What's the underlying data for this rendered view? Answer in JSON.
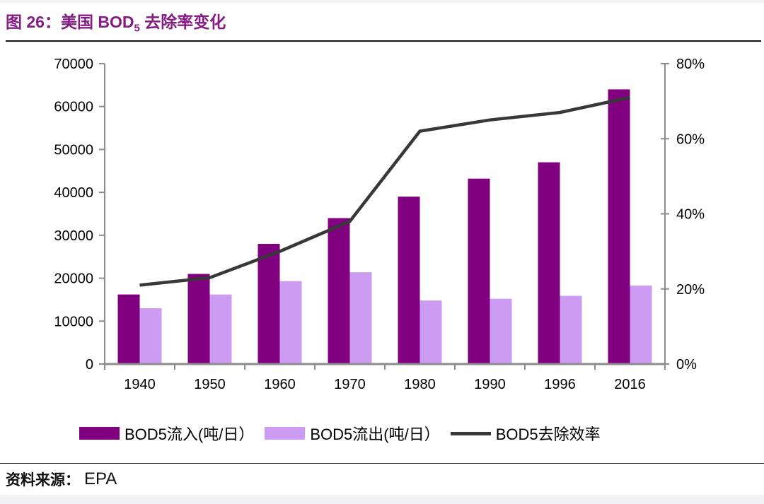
{
  "header": {
    "figure_label": "图 26：",
    "title_main": "美国 BOD",
    "title_sub": "5",
    "title_tail": " 去除率变化"
  },
  "chart_data": {
    "type": "bar+line combo",
    "categories": [
      "1940",
      "1950",
      "1960",
      "1970",
      "1980",
      "1990",
      "1996",
      "2016"
    ],
    "series": [
      {
        "key": "inflow",
        "name": "BOD5流入(吨/日）",
        "type": "bar",
        "axis": "left",
        "color": "#800080",
        "values": [
          16200,
          21000,
          28000,
          34000,
          39000,
          43200,
          47000,
          64000
        ]
      },
      {
        "key": "outflow",
        "name": "BOD5流出(吨/日）",
        "type": "bar",
        "axis": "left",
        "color": "#CB9CF2",
        "values": [
          13000,
          16200,
          19300,
          21400,
          14800,
          15200,
          15900,
          18300
        ]
      },
      {
        "key": "efficiency",
        "name": "BOD5去除效率",
        "type": "line",
        "axis": "right",
        "color": "#383838",
        "values": [
          21,
          23,
          30,
          38,
          62,
          65,
          67,
          71
        ]
      }
    ],
    "left_axis": {
      "min": 0,
      "max": 70000,
      "step": 10000,
      "tick_labels": [
        "0",
        "10000",
        "20000",
        "30000",
        "40000",
        "50000",
        "60000",
        "70000"
      ]
    },
    "right_axis": {
      "min": 0,
      "max": 80,
      "step": 20,
      "tick_labels": [
        "0%",
        "20%",
        "40%",
        "60%",
        "80%"
      ]
    },
    "grid": false,
    "legend_position": "bottom"
  },
  "legend": {
    "items": [
      {
        "label": "BOD5流入(吨/日）",
        "swatch": "bar",
        "series_index": 0
      },
      {
        "label": "BOD5流出(吨/日）",
        "swatch": "bar",
        "series_index": 1
      },
      {
        "label": "BOD5去除效率",
        "swatch": "line",
        "series_index": 2
      }
    ]
  },
  "footer": {
    "source_label": "资料来源：",
    "source_value": "EPA"
  },
  "colors": {
    "title": "#861B86",
    "bar_inflow": "#800080",
    "bar_outflow": "#CB9CF2",
    "efficiency_line": "#383838",
    "axis": "#8C8C8C"
  }
}
